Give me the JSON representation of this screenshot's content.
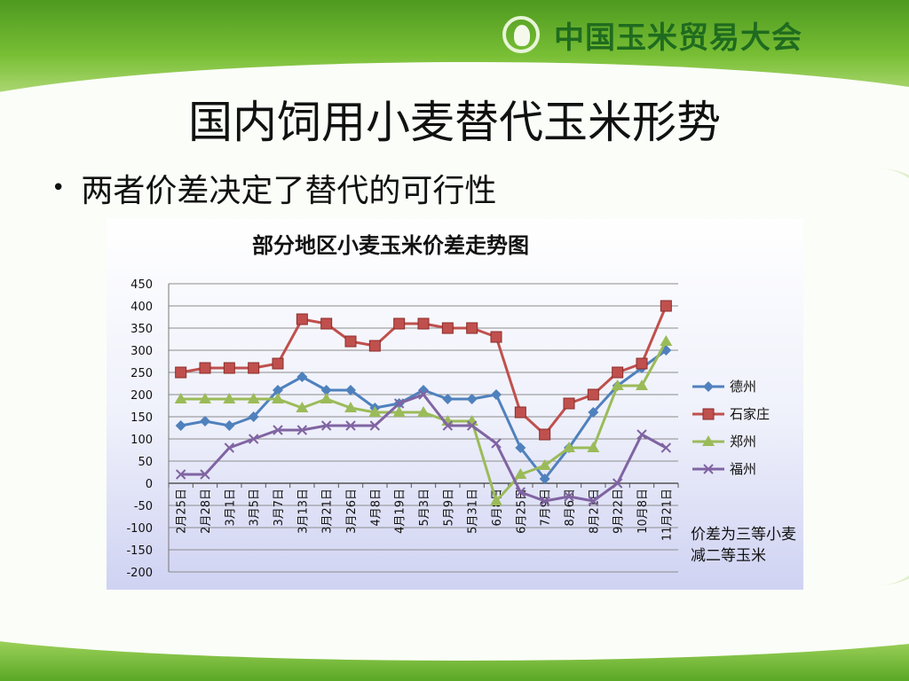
{
  "brand": {
    "name": "中国玉米贸易大会",
    "logo_icon": "corn-logo-icon"
  },
  "slide": {
    "title": "国内饲用小麦替代玉米形势",
    "bullet": "两者价差决定了替代的可行性",
    "bullet_marker": "•"
  },
  "colors": {
    "header_green": "#5aa825",
    "brand_text": "#1f6b1f"
  },
  "chart_data": {
    "type": "line",
    "title": "部分地区小麦玉米价差走势图",
    "ylim": [
      -200,
      450
    ],
    "yticks": [
      450,
      400,
      350,
      300,
      250,
      200,
      150,
      100,
      50,
      0,
      -50,
      -100,
      -150,
      -200
    ],
    "grid": true,
    "legend_position": "right",
    "categories": [
      "2月25日",
      "2月28日",
      "3月1日",
      "3月5日",
      "3月7日",
      "3月13日",
      "3月21日",
      "3月26日",
      "4月8日",
      "4月19日",
      "5月3日",
      "5月9日",
      "5月31日",
      "6月8日",
      "6月25日",
      "7月9日",
      "8月6日",
      "8月21日",
      "9月22日",
      "10月8日",
      "11月21日"
    ],
    "series": [
      {
        "name": "德州",
        "color": "#4f81bd",
        "marker": "diamond",
        "values": [
          130,
          140,
          130,
          150,
          210,
          240,
          210,
          210,
          170,
          180,
          210,
          190,
          190,
          200,
          80,
          10,
          80,
          160,
          220,
          260,
          300
        ]
      },
      {
        "name": "石家庄",
        "color": "#c0504d",
        "marker": "square",
        "values": [
          250,
          260,
          260,
          260,
          270,
          370,
          360,
          320,
          310,
          360,
          360,
          350,
          350,
          330,
          160,
          110,
          180,
          200,
          250,
          270,
          400
        ]
      },
      {
        "name": "郑州",
        "color": "#9bbb59",
        "marker": "triangle",
        "values": [
          190,
          190,
          190,
          190,
          190,
          170,
          190,
          170,
          160,
          160,
          160,
          140,
          140,
          -40,
          20,
          40,
          80,
          80,
          220,
          220,
          320
        ]
      },
      {
        "name": "福州",
        "color": "#8064a2",
        "marker": "x",
        "values": [
          20,
          20,
          80,
          100,
          120,
          120,
          130,
          130,
          130,
          180,
          200,
          130,
          130,
          90,
          -20,
          -40,
          -30,
          -40,
          0,
          110,
          80
        ]
      }
    ],
    "note": "价差为三等小麦减二等玉米"
  }
}
